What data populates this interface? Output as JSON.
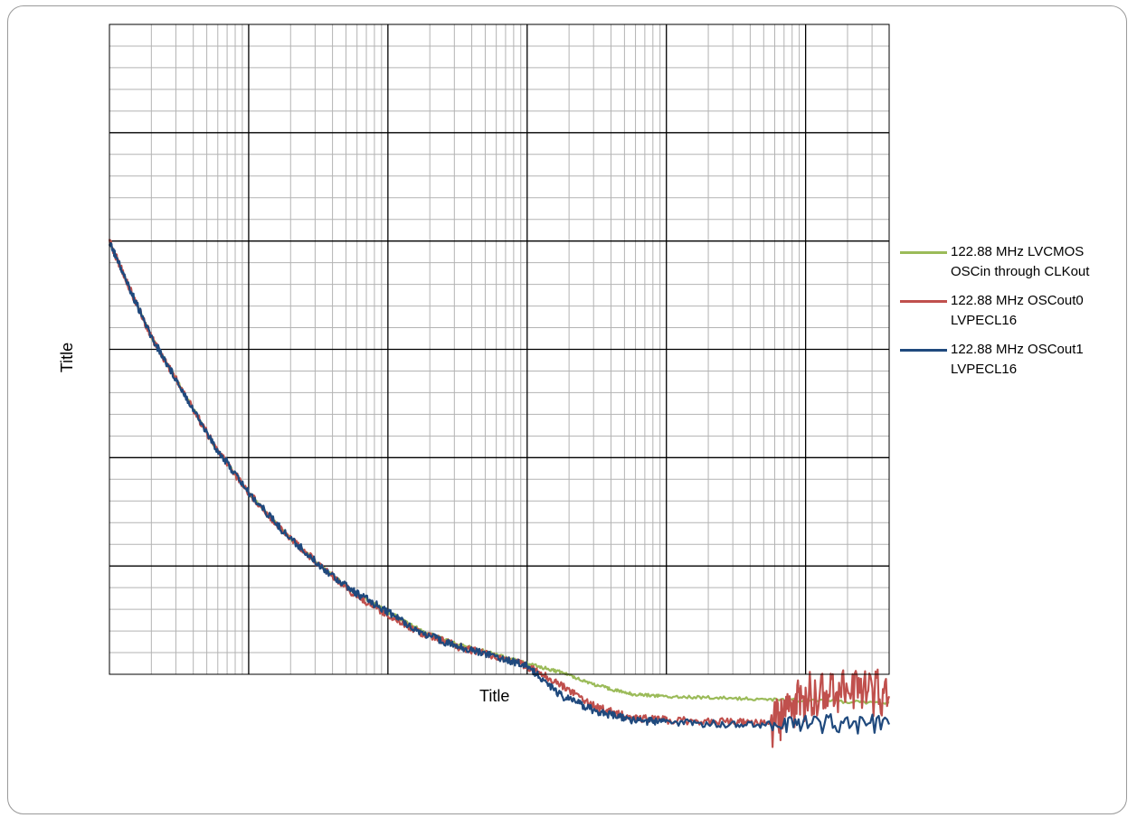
{
  "chart_data": {
    "type": "line",
    "title": "",
    "xlabel": "Title",
    "ylabel": "Title",
    "x_scale": "log",
    "x_decades": 5.6,
    "y_major_divisions": 6,
    "y_minor_per_major": 5,
    "grid": true,
    "legend_position": "right",
    "series": [
      {
        "name": "122.88 MHz LVCMOS OSCin through CLKout",
        "color": "#9BBB59",
        "points": [
          [
            0.0,
            0.0
          ],
          [
            0.15,
            0.45
          ],
          [
            0.3,
            0.88
          ],
          [
            0.5,
            1.32
          ],
          [
            0.75,
            1.88
          ],
          [
            1.0,
            2.32
          ],
          [
            1.25,
            2.68
          ],
          [
            1.5,
            2.98
          ],
          [
            1.75,
            3.23
          ],
          [
            2.0,
            3.42
          ],
          [
            2.25,
            3.6
          ],
          [
            2.5,
            3.72
          ],
          [
            2.75,
            3.8
          ],
          [
            3.0,
            3.9
          ],
          [
            3.25,
            3.98
          ],
          [
            3.5,
            4.1
          ],
          [
            3.75,
            4.18
          ],
          [
            4.0,
            4.2
          ],
          [
            4.5,
            4.22
          ],
          [
            5.0,
            4.24
          ],
          [
            5.6,
            4.26
          ]
        ]
      },
      {
        "name": "122.88 MHz OSCout0 LVPECL16",
        "color": "#C0504D",
        "points": [
          [
            0.0,
            0.0
          ],
          [
            0.15,
            0.45
          ],
          [
            0.3,
            0.88
          ],
          [
            0.5,
            1.32
          ],
          [
            0.75,
            1.88
          ],
          [
            1.0,
            2.32
          ],
          [
            1.25,
            2.68
          ],
          [
            1.5,
            2.98
          ],
          [
            1.75,
            3.25
          ],
          [
            2.0,
            3.45
          ],
          [
            2.25,
            3.62
          ],
          [
            2.5,
            3.74
          ],
          [
            2.75,
            3.82
          ],
          [
            3.0,
            3.92
          ],
          [
            3.25,
            4.1
          ],
          [
            3.5,
            4.3
          ],
          [
            3.75,
            4.4
          ],
          [
            4.0,
            4.42
          ],
          [
            4.5,
            4.44
          ],
          [
            4.8,
            4.45
          ],
          [
            5.0,
            4.2
          ],
          [
            5.3,
            4.1
          ],
          [
            5.6,
            4.2
          ]
        ]
      },
      {
        "name": "122.88 MHz OSCout1 LVPECL16",
        "color": "#1F497D",
        "points": [
          [
            0.0,
            0.0
          ],
          [
            0.15,
            0.45
          ],
          [
            0.3,
            0.88
          ],
          [
            0.5,
            1.32
          ],
          [
            0.75,
            1.88
          ],
          [
            1.0,
            2.32
          ],
          [
            1.25,
            2.68
          ],
          [
            1.5,
            2.98
          ],
          [
            1.75,
            3.23
          ],
          [
            2.0,
            3.42
          ],
          [
            2.25,
            3.62
          ],
          [
            2.5,
            3.74
          ],
          [
            2.75,
            3.82
          ],
          [
            3.0,
            3.92
          ],
          [
            3.25,
            4.2
          ],
          [
            3.5,
            4.34
          ],
          [
            3.75,
            4.42
          ],
          [
            4.0,
            4.44
          ],
          [
            4.5,
            4.46
          ],
          [
            5.0,
            4.45
          ],
          [
            5.6,
            4.46
          ]
        ]
      }
    ]
  },
  "legend": {
    "items": [
      {
        "label": "122.88 MHz LVCMOS\nOSCin through CLKout",
        "color": "#9BBB59"
      },
      {
        "label": "122.88 MHz OSCout0\nLVPECL16",
        "color": "#C0504D"
      },
      {
        "label": "122.88 MHz OSCout1\nLVPECL16",
        "color": "#1F497D"
      }
    ]
  }
}
